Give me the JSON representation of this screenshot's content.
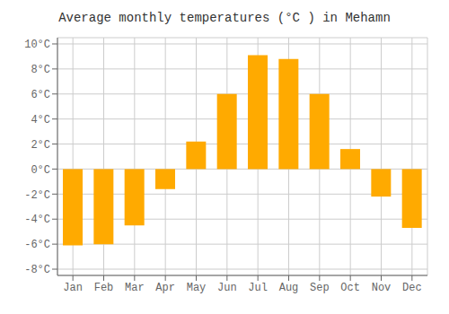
{
  "chart_data": {
    "type": "bar",
    "title": "Average monthly temperatures (°C ) in Mehamn",
    "categories": [
      "Jan",
      "Feb",
      "Mar",
      "Apr",
      "May",
      "Jun",
      "Jul",
      "Aug",
      "Sep",
      "Oct",
      "Nov",
      "Dec"
    ],
    "values": [
      -6.1,
      -6.0,
      -4.5,
      -1.6,
      2.2,
      6.0,
      9.1,
      8.8,
      6.0,
      1.6,
      -2.2,
      -4.7
    ],
    "color": "#FFAA00",
    "ylim": [
      -8.5,
      10.5
    ],
    "yticks": [
      {
        "value": -8,
        "label": "-8°C"
      },
      {
        "value": -6,
        "label": "-6°C"
      },
      {
        "value": -4,
        "label": "-4°C"
      },
      {
        "value": -2,
        "label": "-2°C"
      },
      {
        "value": 0,
        "label": "0°C"
      },
      {
        "value": 2,
        "label": "2°C"
      },
      {
        "value": 4,
        "label": "4°C"
      },
      {
        "value": 6,
        "label": "6°C"
      },
      {
        "value": 8,
        "label": "8°C"
      },
      {
        "value": 10,
        "label": "10°C"
      }
    ],
    "grid": true
  }
}
